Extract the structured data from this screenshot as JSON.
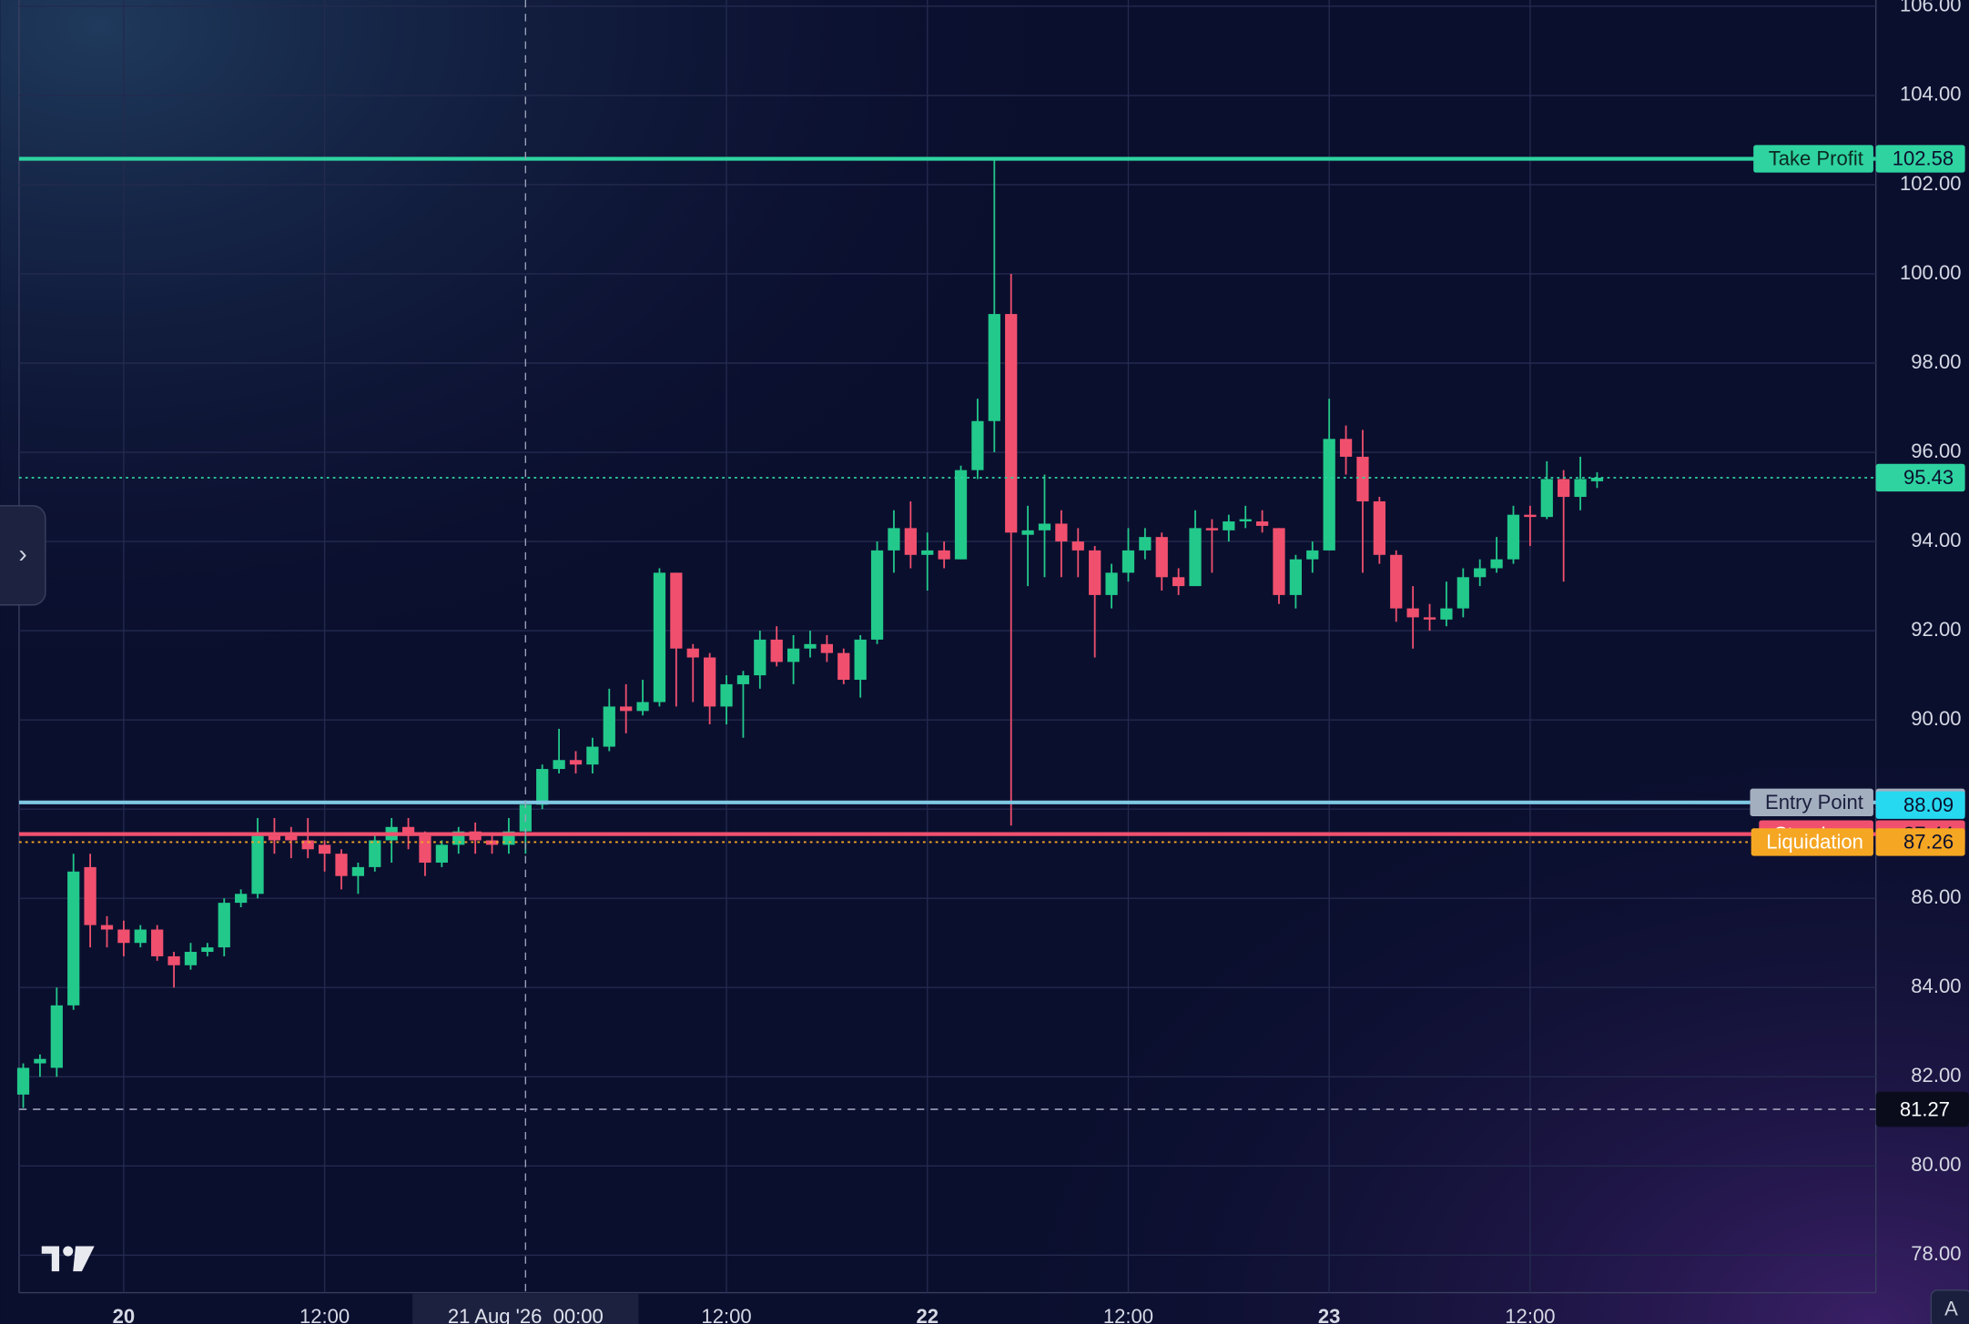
{
  "chart_data": {
    "type": "candlestick",
    "up_color": "#22c98b",
    "down_color": "#f0506e",
    "xlim": [
      -0.25,
      110.65
    ],
    "ylim": [
      77.16,
      106.14
    ],
    "xticks": [
      {
        "value": 6,
        "label": "20"
      },
      {
        "value": 18,
        "label": "12:00"
      },
      {
        "value": 42,
        "label": "12:00"
      },
      {
        "value": 54,
        "label": "22"
      },
      {
        "value": 66,
        "label": "12:00"
      },
      {
        "value": 78,
        "label": "23"
      },
      {
        "value": 90,
        "label": "12:00"
      }
    ],
    "yticks": [
      {
        "value": 78,
        "label": "78.00"
      },
      {
        "value": 80,
        "label": "80.00"
      },
      {
        "value": 82,
        "label": "82.00"
      },
      {
        "value": 84,
        "label": "84.00"
      },
      {
        "value": 86,
        "label": "86.00"
      },
      {
        "value": 88,
        "label": "88.00"
      },
      {
        "value": 90,
        "label": "90.00"
      },
      {
        "value": 92,
        "label": "92.00"
      },
      {
        "value": 94,
        "label": "94.00"
      },
      {
        "value": 96,
        "label": "96.00"
      },
      {
        "value": 98,
        "label": "98.00"
      },
      {
        "value": 100,
        "label": "100.00"
      },
      {
        "value": 102,
        "label": "102.00"
      },
      {
        "value": 104,
        "label": "104.00"
      },
      {
        "value": 106,
        "label": "106.00"
      }
    ],
    "grid": true,
    "open": [
      81.6,
      82.3,
      82.2,
      83.6,
      86.7,
      85.4,
      85.3,
      85.0,
      85.3,
      84.7,
      84.5,
      84.8,
      84.9,
      85.9,
      86.1,
      87.4,
      87.4,
      87.3,
      87.2,
      87.0,
      86.5,
      86.7,
      87.3,
      87.6,
      87.4,
      86.8,
      87.2,
      87.5,
      87.3,
      87.2,
      87.5,
      88.1,
      88.9,
      89.1,
      89.0,
      89.4,
      90.3,
      90.2,
      90.4,
      93.3,
      91.6,
      91.4,
      90.3,
      90.8,
      91.0,
      91.8,
      91.3,
      91.6,
      91.7,
      91.5,
      90.9,
      91.8,
      93.8,
      94.3,
      93.7,
      93.8,
      93.6,
      95.6,
      96.7,
      99.1,
      94.15,
      94.25,
      94.4,
      94.0,
      93.8,
      92.8,
      93.3,
      93.8,
      94.1,
      93.2,
      93.0,
      94.3,
      94.25,
      94.45,
      94.45,
      94.3,
      92.8,
      93.6,
      93.8,
      96.3,
      95.9,
      94.9,
      93.7,
      92.5,
      92.3,
      92.25,
      92.5,
      93.2,
      93.4,
      93.6,
      94.6,
      94.55,
      95.4,
      95.0,
      95.35
    ],
    "high": [
      82.3,
      82.5,
      84.0,
      87.0,
      87.0,
      85.6,
      85.5,
      85.4,
      85.4,
      84.8,
      85.0,
      85.0,
      86.0,
      86.2,
      87.8,
      87.8,
      87.6,
      87.8,
      87.3,
      87.1,
      86.8,
      87.4,
      87.8,
      87.8,
      87.5,
      87.3,
      87.6,
      87.7,
      87.4,
      87.8,
      88.2,
      89.0,
      89.8,
      89.3,
      89.6,
      90.7,
      90.8,
      90.9,
      93.4,
      93.3,
      91.7,
      91.5,
      91.0,
      91.1,
      92.0,
      92.1,
      91.9,
      92.0,
      91.9,
      91.6,
      91.9,
      94.0,
      94.7,
      94.9,
      94.2,
      94.0,
      95.7,
      97.2,
      102.6,
      100.0,
      94.8,
      95.5,
      94.7,
      94.3,
      93.9,
      93.5,
      94.3,
      94.3,
      94.2,
      93.4,
      94.7,
      94.5,
      94.6,
      94.8,
      94.7,
      94.3,
      93.7,
      94.0,
      97.2,
      96.6,
      96.5,
      95.0,
      93.8,
      93.0,
      92.6,
      93.1,
      93.4,
      93.6,
      94.1,
      94.8,
      94.8,
      95.8,
      95.6,
      95.9,
      95.55
    ],
    "low": [
      81.3,
      82.0,
      82.0,
      83.5,
      84.9,
      84.9,
      84.7,
      84.9,
      84.6,
      84.0,
      84.4,
      84.7,
      84.7,
      85.8,
      86.0,
      87.0,
      86.9,
      86.9,
      86.6,
      86.2,
      86.1,
      86.6,
      86.8,
      87.1,
      86.5,
      86.7,
      87.0,
      87.0,
      87.0,
      87.0,
      87.0,
      88.0,
      88.8,
      88.8,
      88.8,
      89.3,
      89.7,
      90.1,
      90.3,
      90.3,
      90.4,
      89.9,
      89.9,
      89.6,
      90.7,
      91.2,
      90.8,
      91.4,
      91.3,
      90.8,
      90.5,
      91.7,
      93.3,
      93.4,
      92.9,
      93.4,
      93.6,
      95.4,
      96.0,
      87.63,
      93.0,
      93.2,
      93.2,
      93.2,
      91.4,
      92.5,
      93.1,
      93.6,
      92.9,
      92.8,
      93.0,
      93.3,
      94.0,
      94.3,
      94.2,
      92.6,
      92.5,
      93.3,
      93.8,
      95.5,
      93.3,
      93.5,
      92.2,
      91.6,
      92.0,
      92.1,
      92.3,
      93.0,
      93.3,
      93.5,
      93.9,
      94.5,
      93.1,
      94.7,
      95.2
    ],
    "close": [
      82.2,
      82.4,
      83.6,
      86.6,
      85.4,
      85.3,
      85.0,
      85.3,
      84.7,
      84.5,
      84.8,
      84.9,
      85.9,
      86.1,
      87.4,
      87.3,
      87.3,
      87.1,
      87.0,
      86.5,
      86.7,
      87.3,
      87.6,
      87.4,
      86.8,
      87.2,
      87.5,
      87.3,
      87.2,
      87.5,
      88.1,
      88.9,
      89.1,
      89.0,
      89.4,
      90.3,
      90.2,
      90.4,
      93.3,
      91.6,
      91.4,
      90.3,
      90.8,
      91.0,
      91.8,
      91.3,
      91.6,
      91.7,
      91.5,
      90.9,
      91.8,
      93.8,
      94.3,
      93.7,
      93.8,
      93.6,
      95.6,
      96.7,
      99.1,
      94.2,
      94.25,
      94.4,
      94.0,
      93.8,
      92.8,
      93.3,
      93.8,
      94.1,
      93.2,
      93.0,
      94.3,
      94.25,
      94.45,
      94.5,
      94.35,
      92.8,
      93.6,
      93.8,
      96.3,
      95.9,
      94.9,
      93.7,
      92.5,
      92.3,
      92.25,
      92.5,
      93.2,
      93.4,
      93.6,
      94.6,
      94.55,
      95.4,
      95.0,
      95.4,
      95.43
    ],
    "price_lines": [
      {
        "label": "Take Profit",
        "value": 102.58,
        "color": "#2ed3a0",
        "style": "solid",
        "label_bg": "#2ed3a0"
      },
      {
        "label": "Entry Point",
        "value": 88.15,
        "color": "#7ec8e3",
        "style": "solid",
        "label_bg": "#a3aebf"
      },
      {
        "value": 88.09,
        "color": "#26d9f0",
        "style": "none"
      },
      {
        "label": "Stop Loss",
        "value": 87.44,
        "color": "#f0506e",
        "style": "solid",
        "label_bg": "#f0506e"
      },
      {
        "label": "Liquidation",
        "value": 87.26,
        "color": "#f5a623",
        "style": "dotted",
        "label_bg": "#f5a623"
      },
      {
        "value": 95.43,
        "color": "#2ed3a0",
        "style": "dotted",
        "label_bg": "#2ed3a0"
      }
    ],
    "crosshair": {
      "x": 30,
      "x_label": "21 Aug '26  00:00",
      "y": 81.27
    }
  },
  "ui": {
    "sidebar_toggle": "›",
    "scale_button": "A"
  }
}
